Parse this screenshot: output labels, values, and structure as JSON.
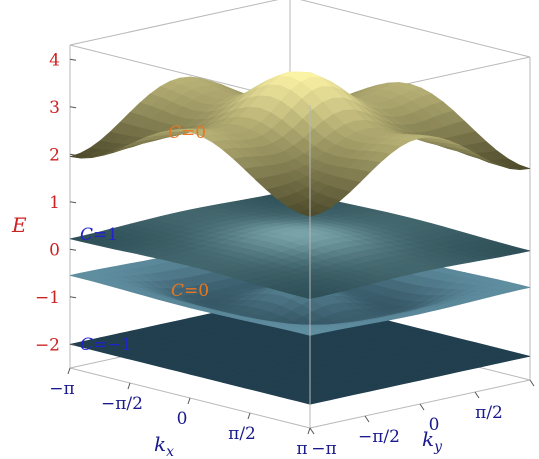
{
  "chart_data": {
    "type": "surface3d",
    "title": "",
    "zlabel": "E",
    "xlabel": "k",
    "xlabel_sub": "x",
    "ylabel": "k",
    "ylabel_sub": "y",
    "zlim": [
      -2.5,
      4.3
    ],
    "z_ticks": [
      "4",
      "3",
      "2",
      "1",
      "0",
      "−1",
      "−2"
    ],
    "z_tick_values": [
      4,
      3,
      2,
      1,
      0,
      -1,
      -2
    ],
    "x_ticks": [
      "−π",
      "−π/2",
      "0",
      "π/2",
      "π"
    ],
    "y_ticks": [
      "−π",
      "−π/2",
      "0",
      "π/2",
      "π"
    ],
    "tick_values": [
      -3.14159,
      -1.5708,
      0,
      1.5708,
      3.14159
    ],
    "series": [
      {
        "label_prefix": "C",
        "label_value": "=0",
        "label_color": "#e87722",
        "e_at_gamma": 3.85,
        "e_at_x": 3.1,
        "e_at_corner": 1.95,
        "e_mid_edge": 2.15,
        "color_low": "#4e4b2c",
        "color_high": "#fff6a8"
      },
      {
        "label_prefix": "C",
        "label_value": "=1",
        "label_color": "#2222cc",
        "e_at_gamma": 0.45,
        "e_at_x": 0.28,
        "e_at_corner": 0.22,
        "e_mid_edge": 0.24,
        "color_low": "#2f5058",
        "color_high": "#7aa4aa"
      },
      {
        "label_prefix": "C",
        "label_value": "=0",
        "label_color": "#e87722",
        "e_at_gamma": -0.65,
        "e_at_x": -0.6,
        "e_at_corner": -0.55,
        "e_mid_edge": -1.35,
        "color_low": "#1f3844",
        "color_high": "#5f8ea0"
      },
      {
        "label_prefix": "C",
        "label_value": "=−1",
        "label_color": "#2222cc",
        "e_at_gamma": -2.0,
        "e_at_x": -2.0,
        "e_at_corner": -2.0,
        "e_mid_edge": -2.0,
        "color_low": "#142a36",
        "color_high": "#2e5366"
      }
    ],
    "colors": {
      "z_axis_text": "#cc2222",
      "xy_axis_text": "#1a1a8c",
      "box_edge": "#b8b8b8"
    }
  }
}
